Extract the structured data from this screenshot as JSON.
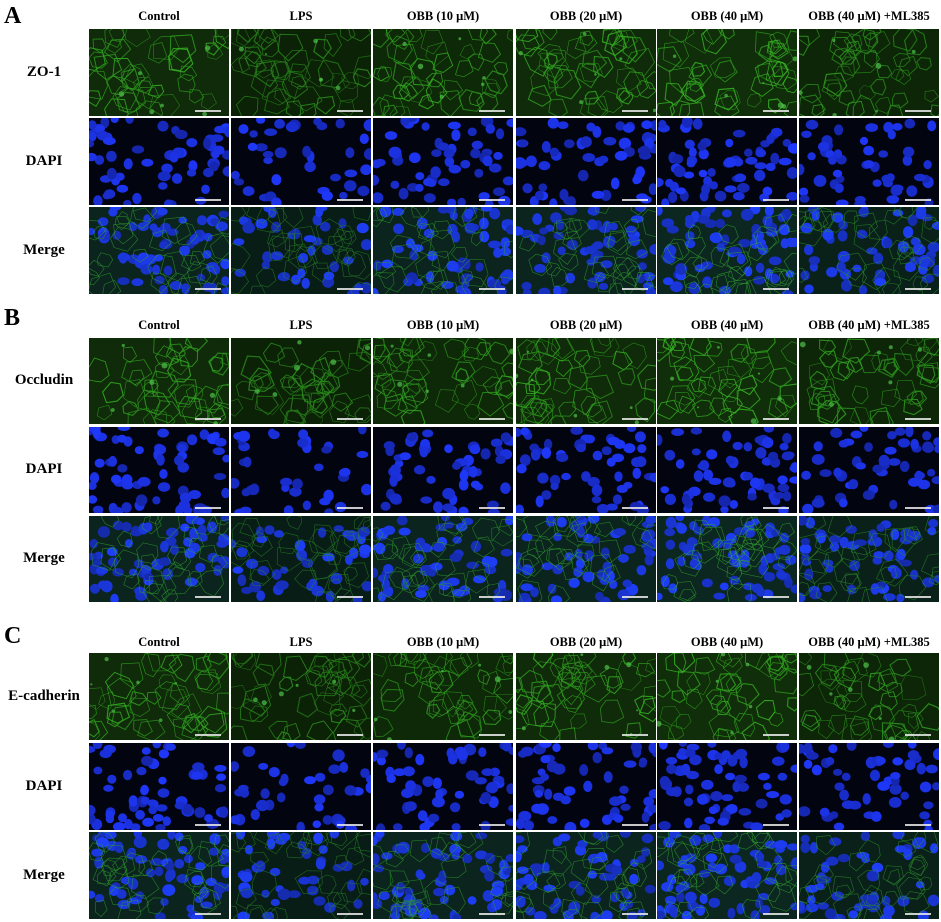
{
  "figure": {
    "panels": [
      {
        "letter": "A",
        "columns": [
          "Control",
          "LPS",
          "OBB (10 μM)",
          "OBB (20 μM)",
          "OBB (40 μM)",
          "OBB (40 μM) +ML385"
        ],
        "rows": [
          "ZO-1",
          "DAPI",
          "Merge"
        ]
      },
      {
        "letter": "B",
        "columns": [
          "Control",
          "LPS",
          "OBB (10 μM)",
          "OBB (20 μM)",
          "OBB (40 μM)",
          "OBB (40 μM) +ML385"
        ],
        "rows": [
          "Occludin",
          "DAPI",
          "Merge"
        ]
      },
      {
        "letter": "C",
        "columns": [
          "Control",
          "LPS",
          "OBB (10 μM)",
          "OBB (20 μM)",
          "OBB (40 μM)",
          "OBB (40 μM) +ML385"
        ],
        "rows": [
          "E-cadherin",
          "DAPI",
          "Merge"
        ]
      }
    ],
    "colors": {
      "green_channel": "#1f6a18",
      "blue_channel": "#1a2ee0",
      "background": "#ffffff"
    }
  }
}
